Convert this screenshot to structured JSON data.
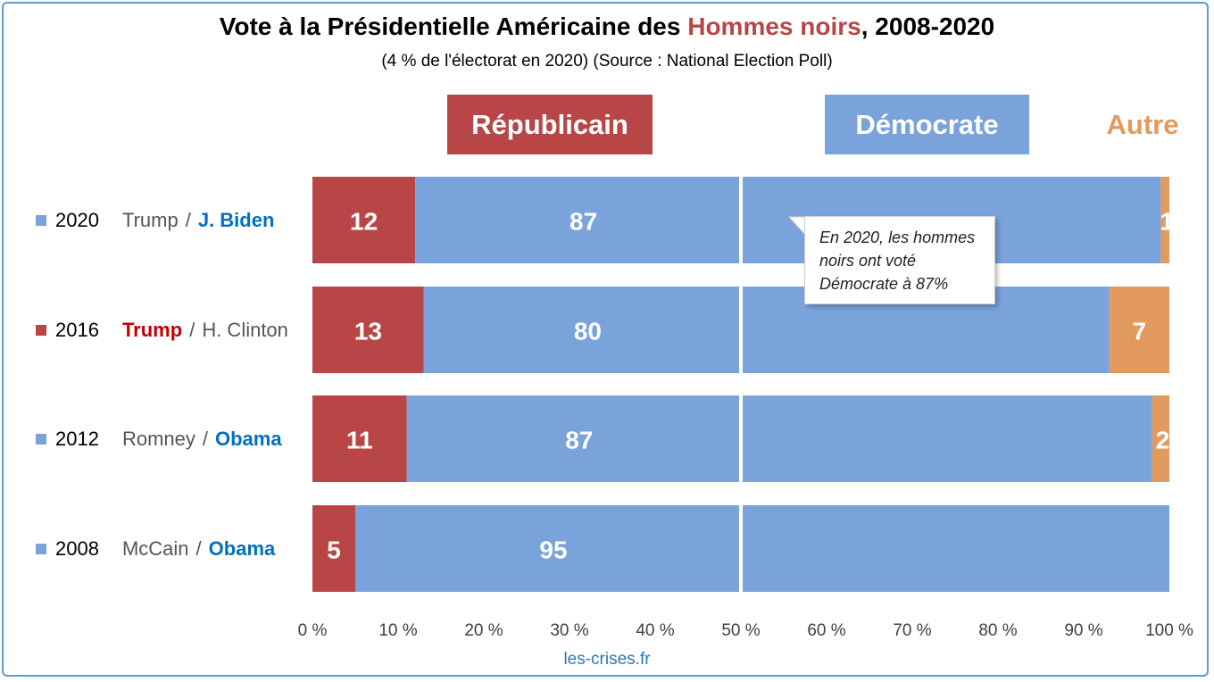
{
  "title": {
    "prefix": "Vote à la Présidentielle Américaine des ",
    "highlight": "Hommes noirs",
    "suffix": ", 2008-2020"
  },
  "subtitle": "(4 % de l'électorat en 2020) (Source : National Election Poll)",
  "footer": "les-crises.fr",
  "callout": {
    "line1": "En 2020, les hommes",
    "line2": "noirs ont voté",
    "line3": "Démocrate à 87%"
  },
  "colors": {
    "republican": "#b84646",
    "democrat": "#7aa3dc",
    "other": "#e29a5e",
    "democrat_text": "#0070c0",
    "republican_text": "#c00000"
  },
  "chart_data": {
    "type": "bar",
    "orientation": "horizontal",
    "stacked": true,
    "categories": [
      "2020",
      "2016",
      "2012",
      "2008"
    ],
    "category_headers": [
      "Républicain",
      "Démocrate",
      "Autre"
    ],
    "candidates": [
      {
        "year": "2020",
        "republican": "Trump",
        "democrat": "J. Biden",
        "winner": "democrat",
        "marker": "democrat"
      },
      {
        "year": "2016",
        "republican": "Trump",
        "democrat": "H. Clinton",
        "winner": "republican",
        "marker": "republican"
      },
      {
        "year": "2012",
        "republican": "Romney",
        "democrat": "Obama",
        "winner": "democrat",
        "marker": "democrat"
      },
      {
        "year": "2008",
        "republican": "McCain",
        "democrat": "Obama",
        "winner": "democrat",
        "marker": "democrat"
      }
    ],
    "series": [
      {
        "name": "Républicain",
        "values": [
          12,
          13,
          11,
          5
        ]
      },
      {
        "name": "Démocrate",
        "values": [
          87,
          80,
          87,
          95
        ]
      },
      {
        "name": "Autre",
        "values": [
          1,
          7,
          2,
          0
        ]
      }
    ],
    "xlim": [
      0,
      100
    ],
    "xticks": [
      "0 %",
      "10 %",
      "20 %",
      "30 %",
      "40 %",
      "50 %",
      "60 %",
      "70 %",
      "80 %",
      "90 %",
      "100 %"
    ],
    "reference_line": 50
  }
}
